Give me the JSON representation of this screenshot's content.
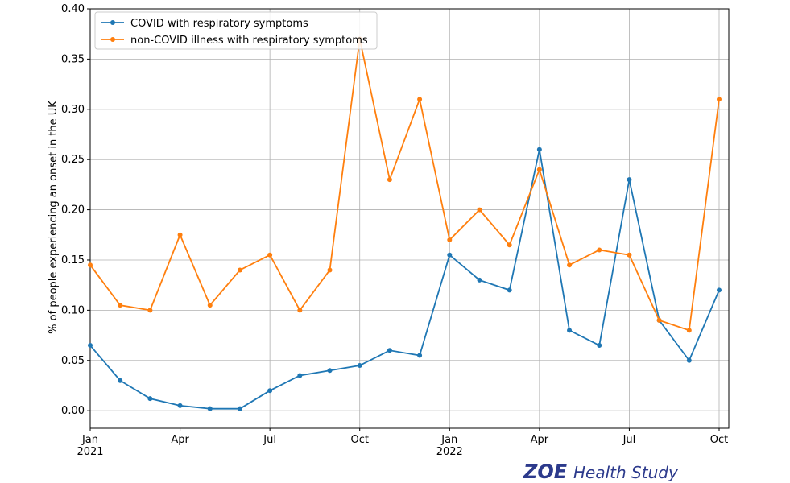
{
  "chart_data": {
    "type": "line",
    "y_label": "% of people experiencing an onset in the UK",
    "x": [
      "2021-01",
      "2021-02",
      "2021-03",
      "2021-04",
      "2021-05",
      "2021-06",
      "2021-07",
      "2021-08",
      "2021-09",
      "2021-10",
      "2021-11",
      "2021-12",
      "2022-01",
      "2022-02",
      "2022-03",
      "2022-04",
      "2022-05",
      "2022-06",
      "2022-07",
      "2022-08",
      "2022-09",
      "2022-10"
    ],
    "series": [
      {
        "name": "COVID with respiratory symptoms",
        "color": "#1f77b4",
        "values": [
          0.065,
          0.03,
          0.012,
          0.005,
          0.002,
          0.002,
          0.02,
          0.035,
          0.04,
          0.045,
          0.06,
          0.055,
          0.155,
          0.13,
          0.12,
          0.26,
          0.08,
          0.065,
          0.23,
          0.09,
          0.05,
          0.12
        ]
      },
      {
        "name": "non-COVID illness with respiratory symptoms",
        "color": "#ff7f0e",
        "values": [
          0.145,
          0.105,
          0.1,
          0.175,
          0.105,
          0.14,
          0.155,
          0.1,
          0.14,
          0.37,
          0.23,
          0.31,
          0.17,
          0.2,
          0.165,
          0.24,
          0.145,
          0.16,
          0.155,
          0.09,
          0.08,
          0.31
        ]
      }
    ],
    "xlim": [
      "2021-01",
      "2022-10"
    ],
    "xticks": [
      {
        "value": "2021-01",
        "label": "Jan 2021"
      },
      {
        "value": "2021-04",
        "label": "Apr"
      },
      {
        "value": "2021-07",
        "label": "Jul"
      },
      {
        "value": "2021-10",
        "label": "Oct"
      },
      {
        "value": "2022-01",
        "label": "Jan 2022"
      },
      {
        "value": "2022-04",
        "label": "Apr"
      },
      {
        "value": "2022-07",
        "label": "Jul"
      },
      {
        "value": "2022-10",
        "label": "Oct"
      }
    ],
    "ylim": [
      -0.0175,
      0.4
    ],
    "yticks": [
      {
        "value": 0,
        "label": "0.00"
      },
      {
        "value": 0.05,
        "label": "0.05"
      },
      {
        "value": 0.1,
        "label": "0.10"
      },
      {
        "value": 0.15,
        "label": "0.15"
      },
      {
        "value": 0.2,
        "label": "0.20"
      },
      {
        "value": 0.25,
        "label": "0.25"
      },
      {
        "value": 0.3,
        "label": "0.30"
      },
      {
        "value": 0.35,
        "label": "0.35"
      },
      {
        "value": 0.4,
        "label": "0.40"
      }
    ],
    "grid": true,
    "legend": "upper left",
    "logo": {
      "brand": "ZOE",
      "text": "Health Study"
    }
  }
}
